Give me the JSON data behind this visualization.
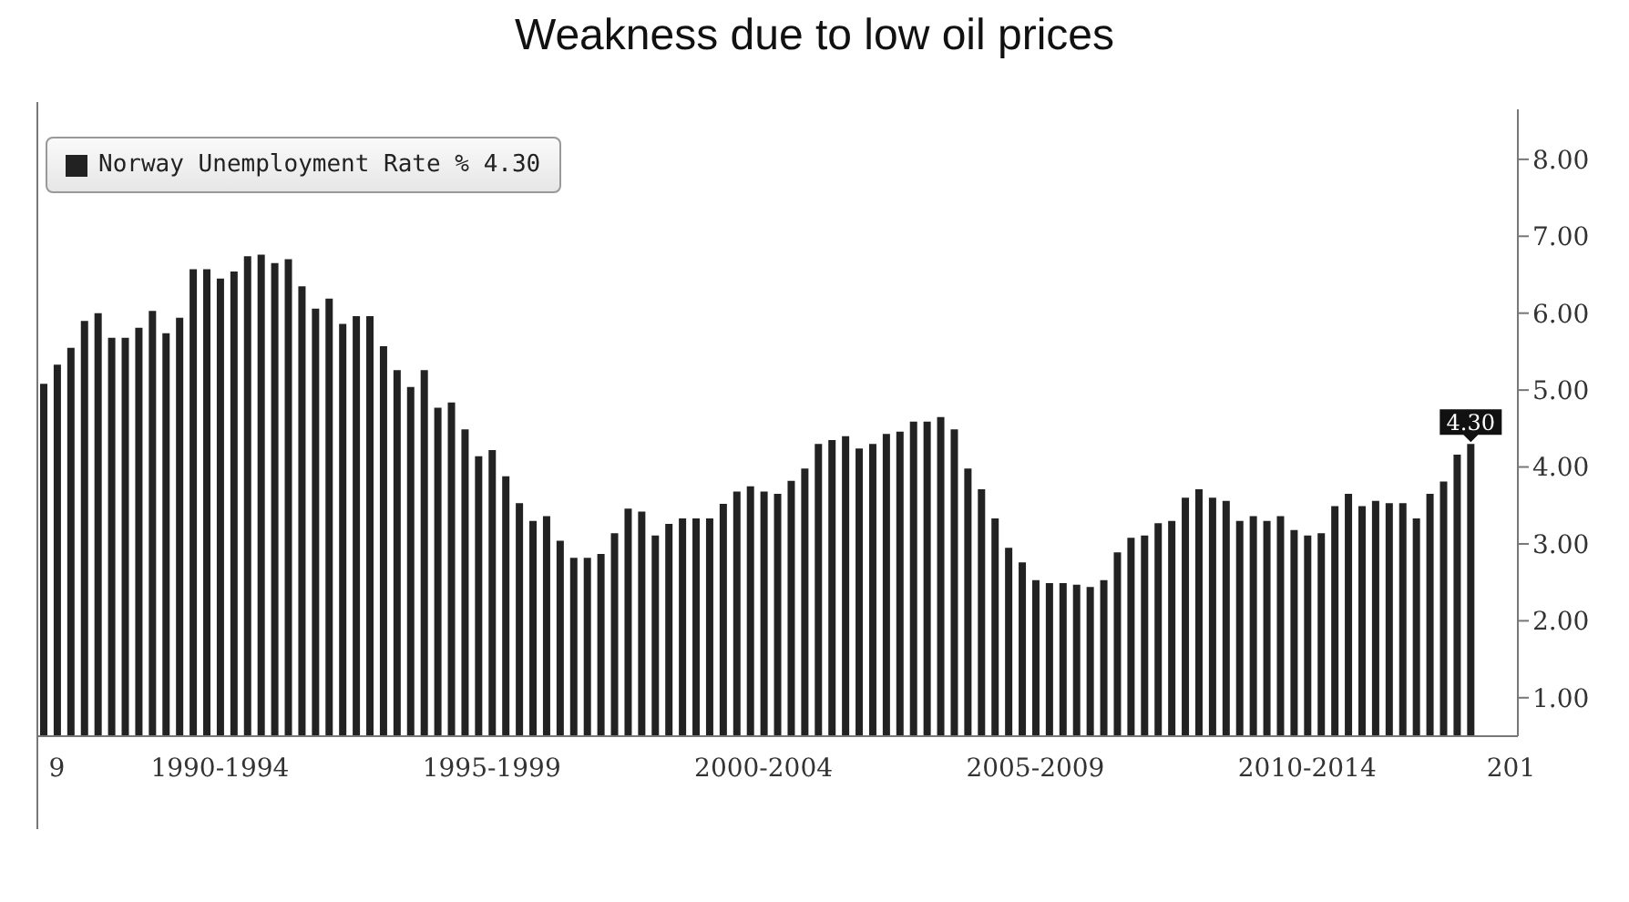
{
  "chart_data": {
    "type": "bar",
    "title": "Weakness due to low oil prices",
    "categories": [
      null,
      "9",
      null,
      null,
      null,
      null,
      null,
      null,
      null,
      null,
      null,
      null,
      null,
      "1990-1994",
      null,
      null,
      null,
      null,
      null,
      null,
      null,
      null,
      null,
      null,
      null,
      null,
      null,
      null,
      null,
      null,
      null,
      null,
      null,
      "1995-1999",
      null,
      null,
      null,
      null,
      null,
      null,
      null,
      null,
      null,
      null,
      null,
      null,
      null,
      null,
      null,
      null,
      null,
      null,
      null,
      "2000-2004",
      null,
      null,
      null,
      null,
      null,
      null,
      null,
      null,
      null,
      null,
      null,
      null,
      null,
      null,
      null,
      null,
      null,
      null,
      null,
      "2005-2009",
      null,
      null,
      null,
      null,
      null,
      null,
      null,
      null,
      null,
      null,
      null,
      null,
      null,
      null,
      null,
      null,
      null,
      null,
      null,
      "2010-2014",
      null,
      null,
      null,
      null,
      null,
      null,
      null,
      null,
      null,
      null,
      null,
      null,
      null,
      null,
      "201"
    ],
    "series": [
      {
        "name": "Norway Unemployment Rate % 4.30",
        "color": "#222222",
        "values": [
          5.08,
          5.33,
          5.55,
          5.9,
          6.0,
          5.68,
          5.68,
          5.81,
          6.03,
          5.74,
          5.94,
          6.57,
          6.57,
          6.45,
          6.54,
          6.74,
          6.76,
          6.65,
          6.7,
          6.35,
          6.06,
          6.19,
          5.86,
          5.96,
          5.96,
          5.57,
          5.26,
          5.04,
          5.26,
          4.77,
          4.84,
          4.49,
          4.14,
          4.22,
          3.88,
          3.53,
          3.3,
          3.36,
          3.04,
          2.82,
          2.82,
          2.87,
          3.14,
          3.46,
          3.42,
          3.11,
          3.26,
          3.33,
          3.33,
          3.33,
          3.52,
          3.68,
          3.75,
          3.68,
          3.65,
          3.82,
          3.98,
          4.3,
          4.35,
          4.4,
          4.24,
          4.3,
          4.43,
          4.46,
          4.59,
          4.59,
          4.65,
          4.49,
          3.98,
          3.71,
          3.33,
          2.95,
          2.76,
          2.53,
          2.49,
          2.49,
          2.47,
          2.44,
          2.53,
          2.89,
          3.08,
          3.11,
          3.27,
          3.3,
          3.6,
          3.71,
          3.6,
          3.56,
          3.3,
          3.36,
          3.3,
          3.36,
          3.18,
          3.11,
          3.14,
          3.49,
          3.65,
          3.49,
          3.56,
          3.53,
          3.53,
          3.33,
          3.65,
          3.81,
          4.16,
          4.3,
          null,
          null,
          null
        ],
        "value_labels": [
          null,
          null,
          null,
          null,
          null,
          null,
          null,
          null,
          null,
          null,
          null,
          null,
          null,
          null,
          null,
          null,
          null,
          null,
          null,
          null,
          null,
          null,
          null,
          null,
          null,
          null,
          null,
          null,
          null,
          null,
          null,
          null,
          null,
          null,
          null,
          null,
          null,
          null,
          null,
          null,
          null,
          null,
          null,
          null,
          null,
          null,
          null,
          null,
          null,
          null,
          null,
          null,
          null,
          null,
          null,
          null,
          null,
          null,
          null,
          null,
          null,
          null,
          null,
          null,
          null,
          null,
          null,
          null,
          null,
          null,
          null,
          null,
          null,
          null,
          null,
          null,
          null,
          null,
          null,
          null,
          null,
          null,
          null,
          null,
          null,
          null,
          null,
          null,
          null,
          null,
          null,
          null,
          null,
          null,
          null,
          null,
          null,
          null,
          null,
          null,
          null,
          null,
          null,
          null,
          null,
          "4.30",
          null,
          null,
          null
        ]
      }
    ],
    "ylim": [
      0.5,
      8.65
    ],
    "yticks": [
      {
        "value": 1,
        "label": "1.00"
      },
      {
        "value": 2,
        "label": "2.00"
      },
      {
        "value": 3,
        "label": "3.00"
      },
      {
        "value": 4,
        "label": "4.00"
      },
      {
        "value": 5,
        "label": "5.00"
      },
      {
        "value": 6,
        "label": "6.00"
      },
      {
        "value": 7,
        "label": "7.00"
      },
      {
        "value": 8,
        "label": "8.00"
      }
    ],
    "grid": false,
    "legend": "top left"
  }
}
